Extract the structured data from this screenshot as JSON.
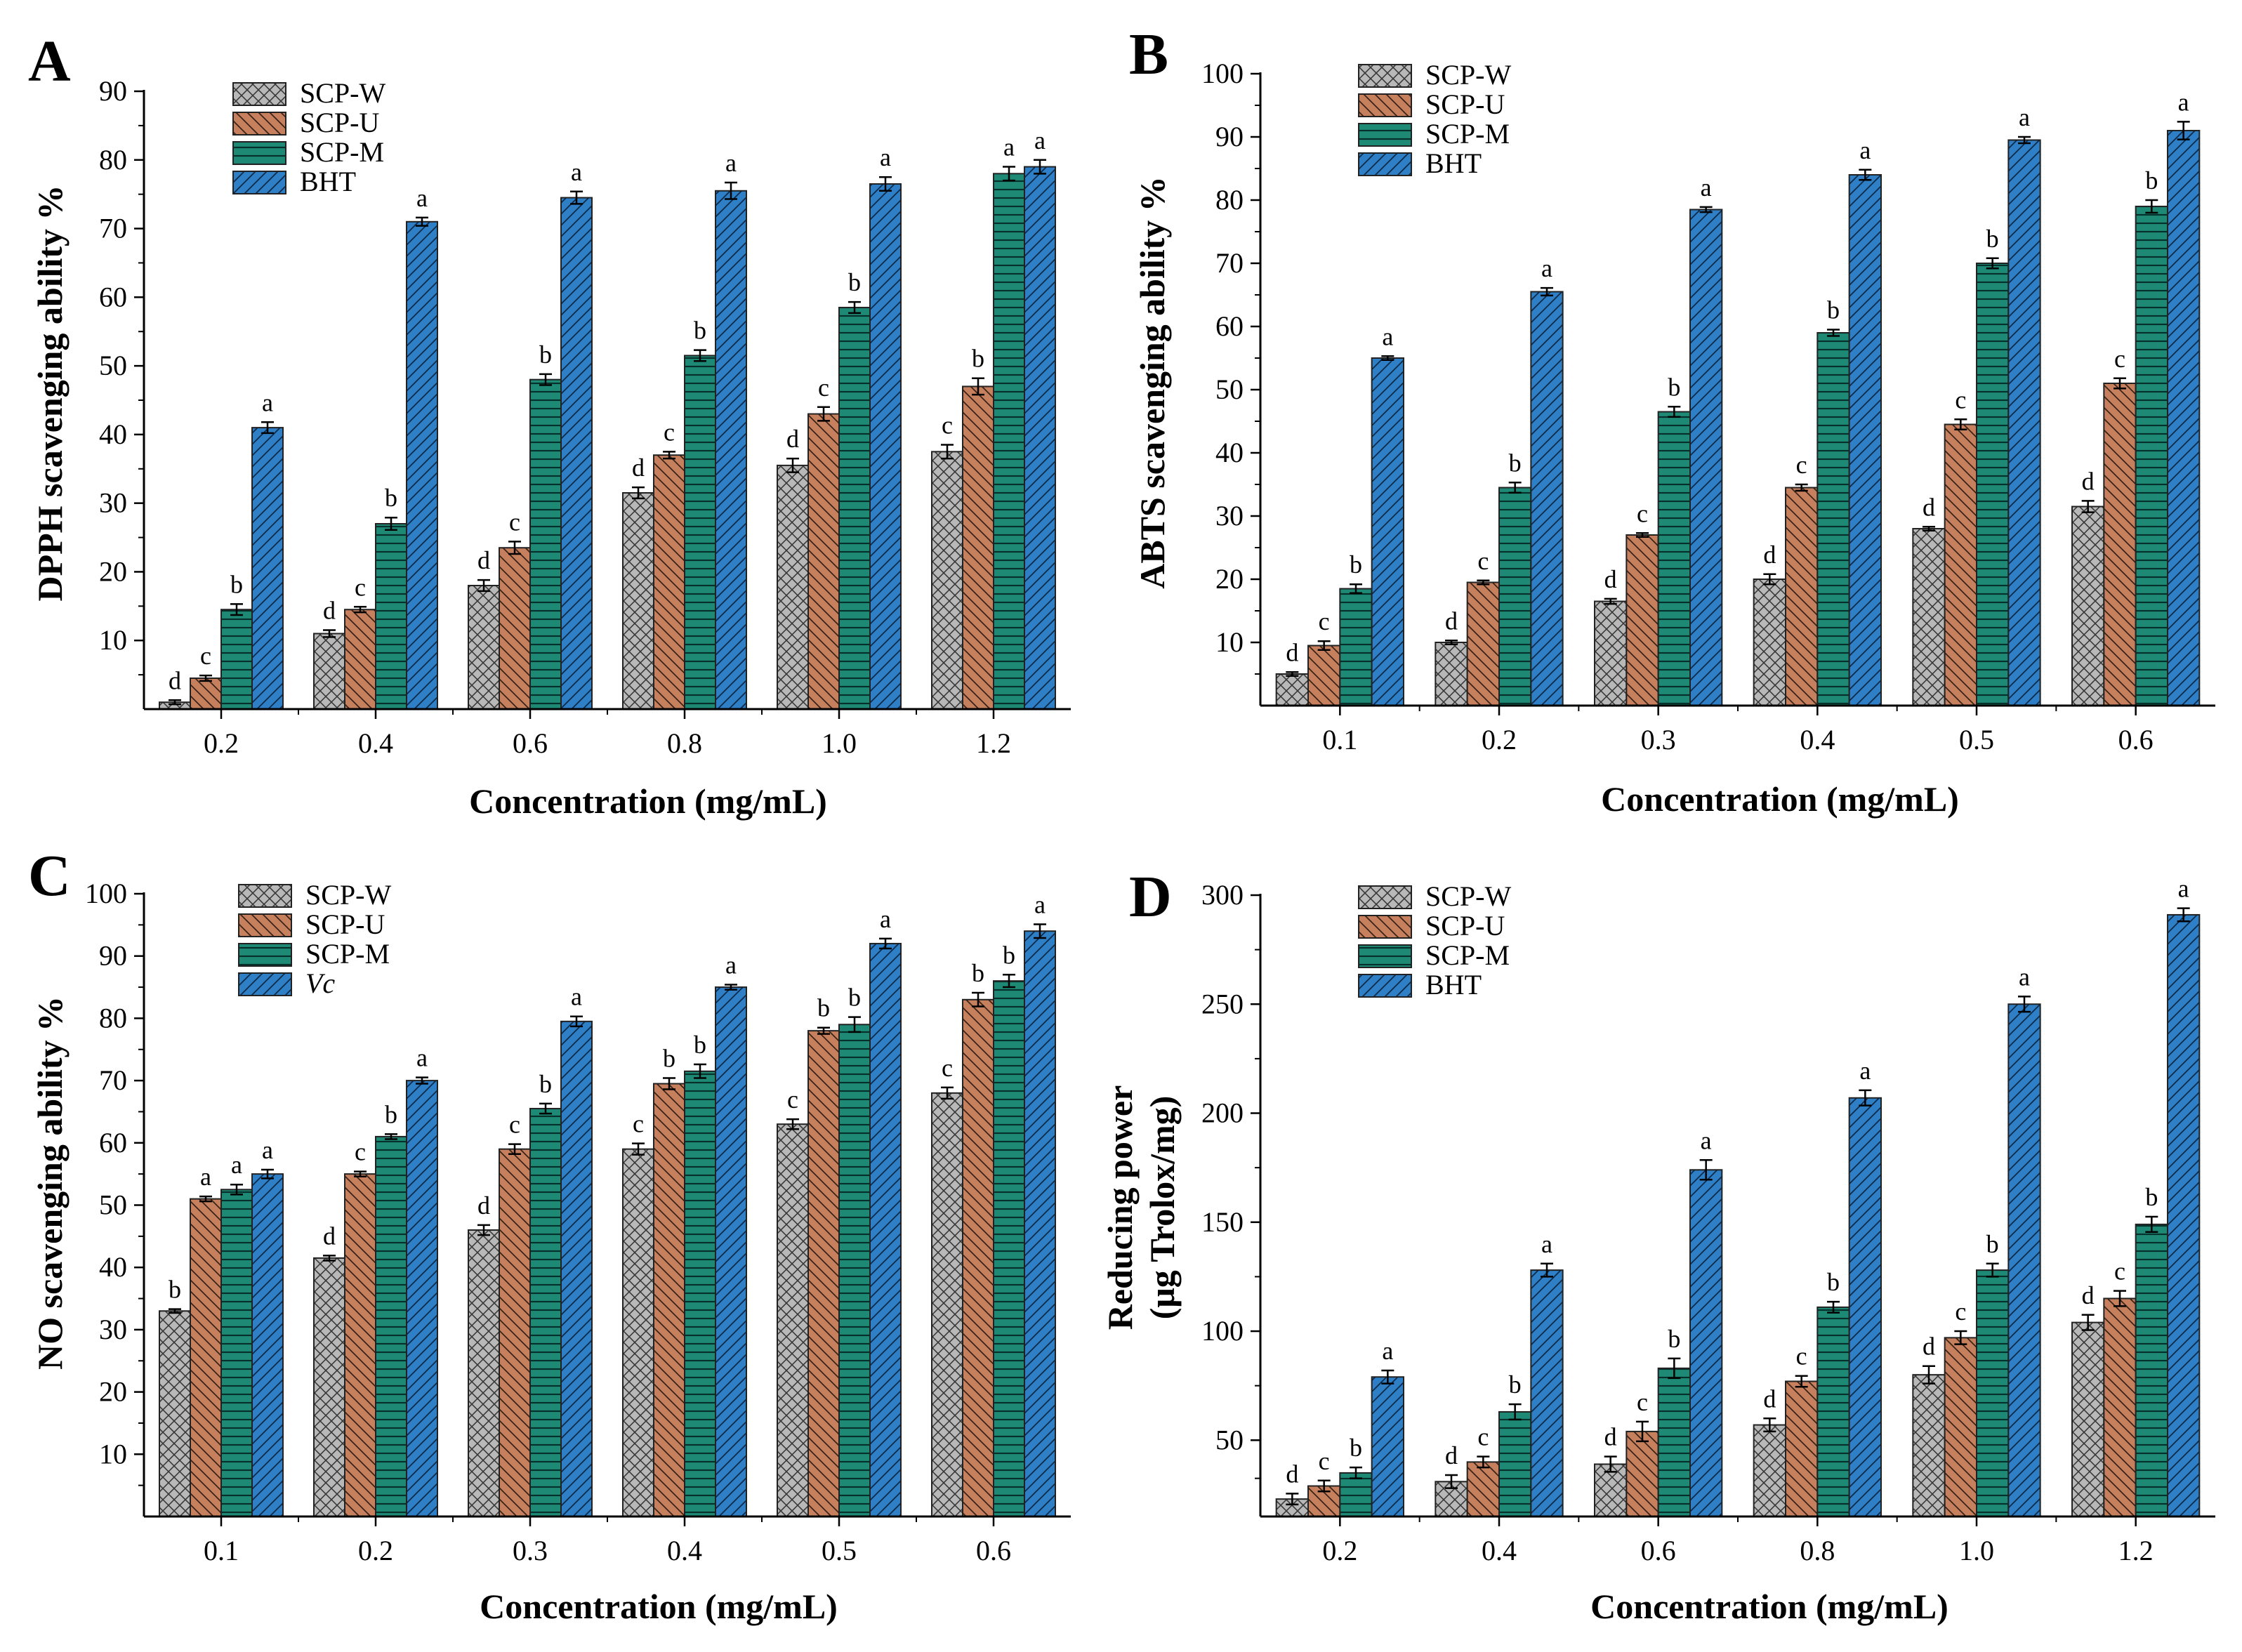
{
  "colors": {
    "SCP-W": "#b8b8b8",
    "SCP-U": "#c7805e",
    "SCP-M": "#1e8a76",
    "BHT": "#2f7fc6",
    "Vc": "#2f7fc6"
  },
  "chart_data": [
    {
      "id": "A",
      "panel_label": "A",
      "type": "bar",
      "title": "",
      "xlabel": "Concentration (mg/mL)",
      "ylabel": [
        "DPPH scavenging ability %"
      ],
      "ylim": [
        0,
        90
      ],
      "yticks": [
        10,
        20,
        30,
        40,
        50,
        60,
        70,
        80,
        90
      ],
      "grid": false,
      "legend_position": "top-left",
      "categories": [
        "0.2",
        "0.4",
        "0.6",
        "0.8",
        "1.0",
        "1.2"
      ],
      "series": [
        {
          "name": "SCP-W",
          "legend_italic": false,
          "values": [
            1,
            11,
            18,
            31.5,
            35.5,
            37.5
          ],
          "errors": [
            0.3,
            0.5,
            0.8,
            0.8,
            1.0,
            1.0
          ],
          "letters": [
            "d",
            "d",
            "d",
            "d",
            "d",
            "c"
          ]
        },
        {
          "name": "SCP-U",
          "legend_italic": false,
          "values": [
            4.5,
            14.5,
            23.5,
            37,
            43,
            47
          ],
          "errors": [
            0.4,
            0.4,
            0.9,
            0.5,
            1.0,
            1.2
          ],
          "letters": [
            "c",
            "c",
            "c",
            "c",
            "c",
            "b"
          ]
        },
        {
          "name": "SCP-M",
          "legend_italic": false,
          "values": [
            14.5,
            27,
            48,
            51.5,
            58.5,
            78
          ],
          "errors": [
            0.8,
            0.9,
            0.8,
            0.8,
            0.8,
            1.0
          ],
          "letters": [
            "b",
            "b",
            "b",
            "b",
            "b",
            "a"
          ]
        },
        {
          "name": "BHT",
          "legend_italic": false,
          "values": [
            41,
            71,
            74.5,
            75.5,
            76.5,
            79
          ],
          "errors": [
            0.8,
            0.6,
            0.9,
            1.2,
            1.0,
            1.0
          ],
          "letters": [
            "a",
            "a",
            "a",
            "a",
            "a",
            "a"
          ]
        }
      ]
    },
    {
      "id": "B",
      "panel_label": "B",
      "type": "bar",
      "title": "",
      "xlabel": "Concentration (mg/mL)",
      "ylabel": [
        "ABTS scavenging ability %"
      ],
      "ylim": [
        0,
        100
      ],
      "yticks": [
        10,
        20,
        30,
        40,
        50,
        60,
        70,
        80,
        90,
        100
      ],
      "grid": false,
      "legend_position": "top-left",
      "categories": [
        "0.1",
        "0.2",
        "0.3",
        "0.4",
        "0.5",
        "0.6"
      ],
      "series": [
        {
          "name": "SCP-W",
          "legend_italic": false,
          "values": [
            5,
            10,
            16.5,
            20,
            28,
            31.5
          ],
          "errors": [
            0.3,
            0.3,
            0.4,
            0.8,
            0.3,
            0.9
          ],
          "letters": [
            "d",
            "d",
            "d",
            "d",
            "d",
            "d"
          ]
        },
        {
          "name": "SCP-U",
          "legend_italic": false,
          "values": [
            9.5,
            19.5,
            27,
            34.5,
            44.5,
            51
          ],
          "errors": [
            0.7,
            0.3,
            0.3,
            0.5,
            0.8,
            0.8
          ],
          "letters": [
            "c",
            "c",
            "c",
            "c",
            "c",
            "c"
          ]
        },
        {
          "name": "SCP-M",
          "legend_italic": false,
          "values": [
            18.5,
            34.5,
            46.5,
            59,
            70,
            79
          ],
          "errors": [
            0.7,
            0.8,
            0.8,
            0.5,
            0.8,
            1.0
          ],
          "letters": [
            "b",
            "b",
            "b",
            "b",
            "b",
            "b"
          ]
        },
        {
          "name": "BHT",
          "legend_italic": false,
          "values": [
            55,
            65.5,
            78.5,
            84,
            89.5,
            91
          ],
          "errors": [
            0.3,
            0.6,
            0.4,
            0.8,
            0.5,
            1.4
          ],
          "letters": [
            "a",
            "a",
            "a",
            "a",
            "a",
            "a"
          ]
        }
      ]
    },
    {
      "id": "C",
      "panel_label": "C",
      "type": "bar",
      "title": "",
      "xlabel": "Concentration (mg/mL)",
      "ylabel": [
        "NO scavenging ability %"
      ],
      "ylim": [
        0,
        100
      ],
      "yticks": [
        10,
        20,
        30,
        40,
        50,
        60,
        70,
        80,
        90,
        100
      ],
      "grid": false,
      "legend_position": "top-left",
      "categories": [
        "0.1",
        "0.2",
        "0.3",
        "0.4",
        "0.5",
        "0.6"
      ],
      "series": [
        {
          "name": "SCP-W",
          "legend_italic": false,
          "values": [
            33,
            41.5,
            46,
            59,
            63,
            68
          ],
          "errors": [
            0.3,
            0.4,
            0.8,
            0.9,
            0.8,
            0.9
          ],
          "letters": [
            "b",
            "d",
            "d",
            "c",
            "c",
            "c"
          ]
        },
        {
          "name": "SCP-U",
          "legend_italic": false,
          "values": [
            51,
            55,
            59,
            69.5,
            78,
            83
          ],
          "errors": [
            0.4,
            0.4,
            0.8,
            0.9,
            0.5,
            1.1
          ],
          "letters": [
            "a",
            "c",
            "c",
            "b",
            "b",
            "b"
          ]
        },
        {
          "name": "SCP-M",
          "legend_italic": false,
          "values": [
            52.5,
            61,
            65.5,
            71.5,
            79,
            86
          ],
          "errors": [
            0.8,
            0.4,
            0.8,
            1.1,
            1.2,
            1.0
          ],
          "letters": [
            "a",
            "b",
            "b",
            "b",
            "b",
            "b"
          ]
        },
        {
          "name": "Vc",
          "legend_italic": true,
          "values": [
            55,
            70,
            79.5,
            85,
            92,
            94
          ],
          "errors": [
            0.7,
            0.5,
            0.8,
            0.4,
            0.8,
            1.1
          ],
          "letters": [
            "a",
            "a",
            "a",
            "a",
            "a",
            "a"
          ]
        }
      ]
    },
    {
      "id": "D",
      "panel_label": "D",
      "type": "bar",
      "title": "",
      "xlabel": "Concentration (mg/mL)",
      "ylabel": [
        "Reducing power",
        "(μg Trolox/mg)"
      ],
      "ylim": [
        15,
        300
      ],
      "yticks": [
        50,
        100,
        150,
        200,
        250,
        300
      ],
      "grid": false,
      "legend_position": "top-left",
      "categories": [
        "0.2",
        "0.4",
        "0.6",
        "0.8",
        "1.0",
        "1.2"
      ],
      "series": [
        {
          "name": "SCP-W",
          "legend_italic": false,
          "values": [
            23,
            31,
            39,
            57,
            80,
            104
          ],
          "errors": [
            2.5,
            3,
            3.5,
            3,
            4,
            3.5
          ],
          "letters": [
            "d",
            "d",
            "d",
            "d",
            "d",
            "d"
          ]
        },
        {
          "name": "SCP-U",
          "legend_italic": false,
          "values": [
            29,
            40,
            54,
            77,
            97,
            115
          ],
          "errors": [
            2.5,
            2.5,
            4.5,
            2.5,
            3,
            3.5
          ],
          "letters": [
            "c",
            "c",
            "c",
            "c",
            "c",
            "c"
          ]
        },
        {
          "name": "SCP-M",
          "legend_italic": false,
          "values": [
            35,
            63,
            83,
            111,
            128,
            149
          ],
          "errors": [
            2.5,
            3.5,
            4.5,
            2.5,
            3,
            3.5
          ],
          "letters": [
            "b",
            "b",
            "b",
            "b",
            "b",
            "b"
          ]
        },
        {
          "name": "BHT",
          "legend_italic": false,
          "values": [
            79,
            128,
            174,
            207,
            250,
            291
          ],
          "errors": [
            3,
            3,
            4.5,
            3.5,
            3.5,
            3
          ],
          "letters": [
            "a",
            "a",
            "a",
            "a",
            "a",
            "a"
          ]
        }
      ]
    }
  ]
}
